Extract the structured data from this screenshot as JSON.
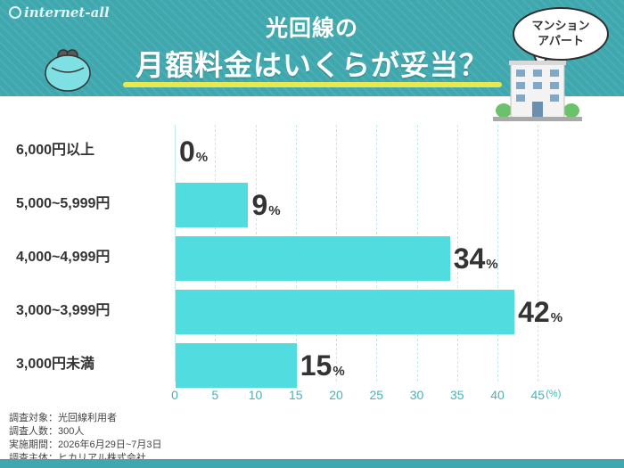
{
  "header": {
    "brand": "internet-all",
    "title_line1": "光回線の",
    "title_line2": "月額料金はいくらが妥当？",
    "bubble_line1": "マンション",
    "bubble_line2": "アパート"
  },
  "chart_data": {
    "type": "bar",
    "orientation": "horizontal",
    "categories": [
      "6,000円以上",
      "5,000~5,999円",
      "4,000~4,999円",
      "3,000~3,999円",
      "3,000円未満"
    ],
    "values": [
      0,
      9,
      34,
      42,
      15
    ],
    "value_labels": [
      "0",
      "9",
      "34",
      "42",
      "15"
    ],
    "value_suffix": "%",
    "xlim": [
      0,
      45
    ],
    "x_ticks": [
      "0",
      "5",
      "10",
      "15",
      "20",
      "25",
      "30",
      "35",
      "40",
      "45"
    ],
    "x_unit": "(%)",
    "grid": true,
    "bar_color": "#51dce0"
  },
  "notes": [
    "調査対象：光回線利用者",
    "調査人数：300人",
    "実施期間：2026年6月29日~7月3日",
    "調査主体：ヒカリアル株式会社"
  ],
  "colors": {
    "header": "#3fa8ae",
    "accent_underline": "#e7e94f",
    "tick_text": "#45b4bb"
  }
}
